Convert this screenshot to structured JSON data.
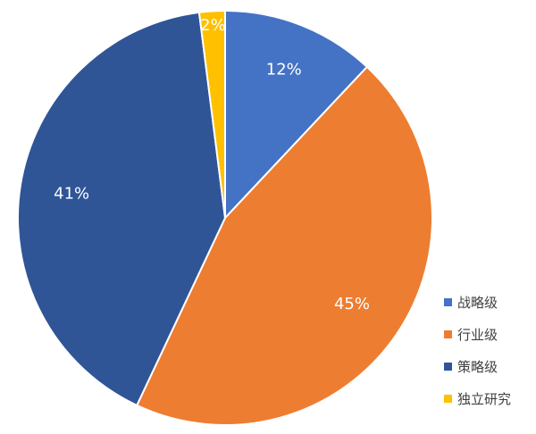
{
  "chart_data": {
    "type": "pie",
    "categories": [
      "战略级",
      "行业级",
      "策略级",
      "独立研究"
    ],
    "values": [
      12,
      45,
      41,
      2
    ],
    "labels": [
      "12%",
      "45%",
      "41%",
      "2%"
    ],
    "colors": [
      "#4472C4",
      "#ED7D31",
      "#2F5597",
      "#FFC000"
    ],
    "legend_position": "right-bottom"
  }
}
